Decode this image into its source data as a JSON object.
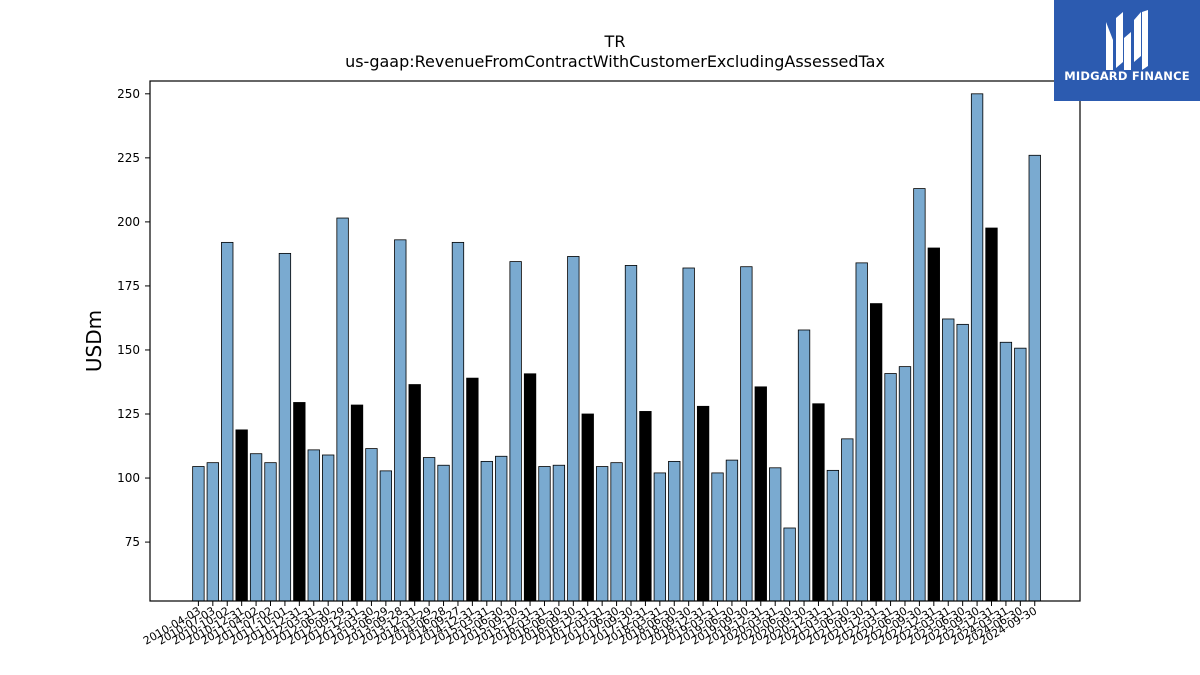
{
  "title": "TR",
  "subtitle": "us-gaap:RevenueFromContractWithCustomerExcludingAssessedTax",
  "logo": {
    "text": "MIDGARD FINANCE",
    "icon": "midgard-logo-icon",
    "bg_color": "#2c5bb0"
  },
  "chart_data": {
    "type": "bar",
    "title": "TR",
    "subtitle": "us-gaap:RevenueFromContractWithCustomerExcludingAssessedTax",
    "xlabel": "",
    "ylabel": "USDm",
    "ylim": [
      52,
      255
    ],
    "yticks": [
      75,
      100,
      125,
      150,
      175,
      200,
      225,
      250
    ],
    "grid": false,
    "colors": {
      "quarterly": "#7aaad0",
      "annual": "#000000"
    },
    "categories": [
      "2010-04-03",
      "2010-07-03",
      "2010-10-02",
      "2010-12-31",
      "2011-04-02",
      "2011-07-02",
      "2011-10-01",
      "2011-12-31",
      "2012-03-31",
      "2012-06-30",
      "2012-09-29",
      "2012-12-31",
      "2013-03-30",
      "2013-06-29",
      "2013-09-28",
      "2013-12-31",
      "2014-03-29",
      "2014-06-28",
      "2014-09-27",
      "2014-12-31",
      "2015-03-31",
      "2015-06-30",
      "2015-09-30",
      "2015-12-31",
      "2016-03-31",
      "2016-06-30",
      "2016-09-30",
      "2016-12-31",
      "2017-03-31",
      "2017-06-30",
      "2017-09-30",
      "2017-12-31",
      "2018-03-31",
      "2018-06-30",
      "2018-09-30",
      "2018-12-31",
      "2019-03-31",
      "2019-06-30",
      "2019-09-30",
      "2019-12-31",
      "2020-03-31",
      "2020-06-30",
      "2020-09-30",
      "2020-12-31",
      "2021-03-31",
      "2021-06-30",
      "2021-09-30",
      "2021-12-31",
      "2022-03-31",
      "2022-06-30",
      "2022-09-30",
      "2022-12-31",
      "2023-03-31",
      "2023-06-30",
      "2023-09-30",
      "2023-12-31",
      "2024-03-31",
      "2024-06-30",
      "2024-09-30"
    ],
    "values": [
      104.5,
      106,
      192,
      118.8,
      109.5,
      106,
      187.7,
      129.5,
      111,
      109,
      201.5,
      128.5,
      111.5,
      102.8,
      193,
      136.5,
      108,
      105,
      192,
      139,
      106.5,
      108.5,
      184.5,
      140.7,
      104.5,
      105,
      186.5,
      125,
      104.5,
      106,
      183,
      126,
      102,
      106.5,
      182,
      128,
      102,
      107,
      182.5,
      135.6,
      104,
      80.5,
      157.8,
      129,
      103,
      115.3,
      184,
      168.1,
      140.8,
      143.5,
      213,
      189.8,
      162.1,
      160,
      250,
      197.6,
      153,
      150.7,
      226
    ],
    "annual_flags": [
      false,
      false,
      false,
      true,
      false,
      false,
      false,
      true,
      false,
      false,
      false,
      true,
      false,
      false,
      false,
      true,
      false,
      false,
      false,
      true,
      false,
      false,
      false,
      true,
      false,
      false,
      false,
      true,
      false,
      false,
      false,
      true,
      false,
      false,
      false,
      true,
      false,
      false,
      false,
      true,
      false,
      false,
      false,
      true,
      false,
      false,
      false,
      true,
      false,
      false,
      false,
      true,
      false,
      false,
      false,
      true,
      false,
      false,
      false
    ]
  }
}
